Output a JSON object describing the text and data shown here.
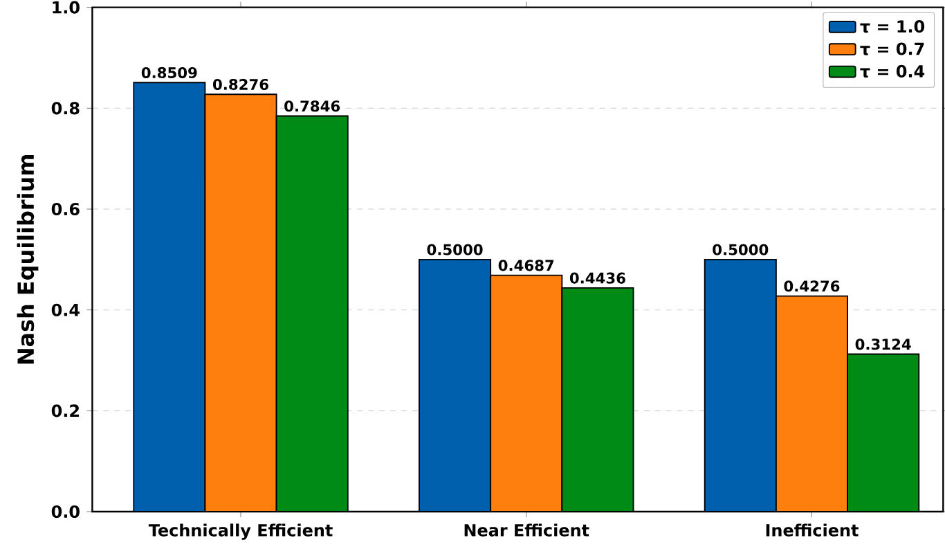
{
  "chart_data": {
    "type": "bar",
    "ylabel": "Nash Equilibrium",
    "categories": [
      "Technically Efficient",
      "Near Efficient",
      "Inefficient"
    ],
    "series": [
      {
        "name": "τ = 1.0",
        "color": "#0060ad",
        "values": [
          0.8509,
          0.5,
          0.5
        ],
        "value_labels": [
          "0.8509",
          "0.5000",
          "0.5000"
        ]
      },
      {
        "name": "τ = 0.7",
        "color": "#ff7f0e",
        "values": [
          0.8276,
          0.4687,
          0.4276
        ],
        "value_labels": [
          "0.8276",
          "0.4687",
          "0.4276"
        ]
      },
      {
        "name": "τ = 0.4",
        "color": "#008b17",
        "values": [
          0.7846,
          0.4436,
          0.3124
        ],
        "value_labels": [
          "0.7846",
          "0.4436",
          "0.3124"
        ]
      }
    ],
    "ylim": [
      0,
      1
    ],
    "yticks": [
      {
        "value": 0,
        "label": "0.0"
      },
      {
        "value": 0.2,
        "label": "0.2"
      },
      {
        "value": 0.4,
        "label": "0.4"
      },
      {
        "value": 0.6,
        "label": "0.6"
      },
      {
        "value": 0.8,
        "label": "0.8"
      },
      {
        "value": 1,
        "label": "1.0"
      }
    ],
    "grid": "y",
    "legend": "top right"
  }
}
